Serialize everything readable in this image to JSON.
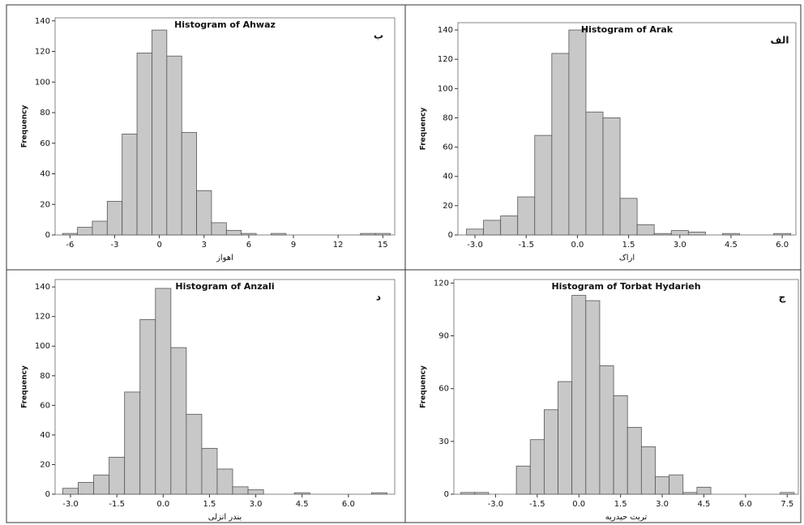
{
  "chart_data": [
    {
      "type": "histogram",
      "title": "Histogram of Ahwaz",
      "panel_label": "ب",
      "x_label": "اهواز",
      "y_label": "Frequency",
      "color": "#c8c8c8",
      "bins": [
        -6.5,
        -5.5,
        -4.5,
        -3.5,
        -2.5,
        -1.5,
        -0.5,
        0.5,
        1.5,
        2.5,
        3.5,
        4.5,
        5.5,
        6.5,
        7.5,
        8.5,
        9.5,
        10.5,
        11.5,
        12.5,
        13.5,
        14.5,
        15.5
      ],
      "counts": [
        1,
        5,
        9,
        22,
        66,
        119,
        134,
        117,
        67,
        29,
        8,
        3,
        1,
        0,
        1,
        0,
        0,
        0,
        0,
        0,
        1,
        1
      ],
      "xlim": [
        -7,
        15.8
      ],
      "xticks": [
        -6,
        -3,
        0,
        3,
        6,
        9,
        12,
        15
      ],
      "ylim": [
        0,
        142
      ],
      "yticks": [
        0,
        20,
        40,
        60,
        80,
        100,
        120,
        140
      ]
    },
    {
      "type": "histogram",
      "title": "Histogram of Arak",
      "panel_label": "الف",
      "x_label": "اراک",
      "y_label": "Frequency",
      "color": "#c8c8c8",
      "bins": [
        -3.25,
        -2.75,
        -2.25,
        -1.75,
        -1.25,
        -0.75,
        -0.25,
        0.25,
        0.75,
        1.25,
        1.75,
        2.25,
        2.75,
        3.25,
        3.75,
        4.25,
        4.75,
        5.25,
        5.75,
        6.25
      ],
      "counts": [
        4,
        10,
        13,
        26,
        68,
        124,
        140,
        84,
        80,
        25,
        7,
        1,
        3,
        2,
        0,
        1,
        0,
        0,
        1
      ],
      "xlim": [
        -3.5,
        6.4
      ],
      "xticks": [
        {
          "value": -3,
          "label": "-3.0"
        },
        {
          "value": -1.5,
          "label": "-1.5"
        },
        {
          "value": 0,
          "label": "0.0"
        },
        {
          "value": 1.5,
          "label": "1.5"
        },
        {
          "value": 3,
          "label": "3.0"
        },
        {
          "value": 4.5,
          "label": "4.5"
        },
        {
          "value": 6,
          "label": "6.0"
        }
      ],
      "ylim": [
        0,
        145
      ],
      "yticks": [
        0,
        20,
        40,
        60,
        80,
        100,
        120,
        140
      ]
    },
    {
      "type": "histogram",
      "title": "Histogram of Anzali",
      "panel_label": "د",
      "x_label": "بندر انزلی",
      "y_label": "Frequency",
      "color": "#c8c8c8",
      "bins": [
        -3.25,
        -2.75,
        -2.25,
        -1.75,
        -1.25,
        -0.75,
        -0.25,
        0.25,
        0.75,
        1.25,
        1.75,
        2.25,
        2.75,
        3.25,
        3.75,
        4.25,
        4.75,
        5.25,
        5.75,
        6.25,
        6.75,
        7.25
      ],
      "counts": [
        4,
        8,
        13,
        25,
        69,
        118,
        139,
        99,
        54,
        31,
        17,
        5,
        3,
        0,
        0,
        1,
        0,
        0,
        0,
        0,
        1
      ],
      "xlim": [
        -3.5,
        7.5
      ],
      "xticks": [
        {
          "value": -3,
          "label": "-3.0"
        },
        {
          "value": -1.5,
          "label": "-1.5"
        },
        {
          "value": 0,
          "label": "0.0"
        },
        {
          "value": 1.5,
          "label": "1.5"
        },
        {
          "value": 3,
          "label": "3.0"
        },
        {
          "value": 4.5,
          "label": "4.5"
        },
        {
          "value": 6,
          "label": "6.0"
        }
      ],
      "ylim": [
        0,
        145
      ],
      "yticks": [
        0,
        20,
        40,
        60,
        80,
        100,
        120,
        140
      ]
    },
    {
      "type": "histogram",
      "title": "Histogram of Torbat Hydarieh",
      "panel_label": "ج",
      "x_label": "تربت حیدریه",
      "y_label": "Frequency",
      "color": "#c8c8c8",
      "bins": [
        -4.25,
        -3.75,
        -3.25,
        -2.75,
        -2.25,
        -1.75,
        -1.25,
        -0.75,
        -0.25,
        0.25,
        0.75,
        1.25,
        1.75,
        2.25,
        2.75,
        3.25,
        3.75,
        4.25,
        4.75,
        5.25,
        5.75,
        6.25,
        6.75,
        7.25,
        7.75
      ],
      "counts": [
        1,
        1,
        0,
        0,
        16,
        31,
        48,
        64,
        113,
        110,
        73,
        56,
        38,
        27,
        10,
        11,
        1,
        4,
        0,
        0,
        0,
        0,
        0,
        1
      ],
      "xlim": [
        -4.5,
        7.9
      ],
      "xticks": [
        {
          "value": -3,
          "label": "-3.0"
        },
        {
          "value": -1.5,
          "label": "-1.5"
        },
        {
          "value": 0,
          "label": "0.0"
        },
        {
          "value": 1.5,
          "label": "1.5"
        },
        {
          "value": 3,
          "label": "3.0"
        },
        {
          "value": 4.5,
          "label": "4.5"
        },
        {
          "value": 6,
          "label": "6.0"
        },
        {
          "value": 7.5,
          "label": "7.5"
        }
      ],
      "ylim": [
        0,
        122
      ],
      "yticks": [
        0,
        30,
        60,
        90,
        120
      ]
    }
  ]
}
